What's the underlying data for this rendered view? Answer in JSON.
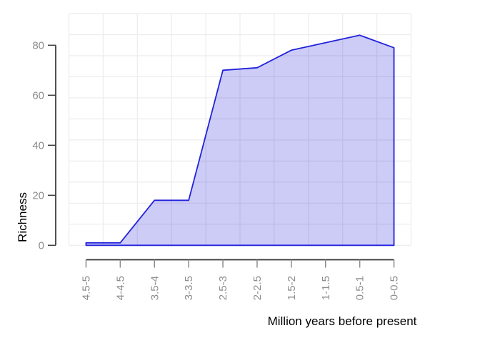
{
  "chart_data": {
    "type": "area",
    "title": "",
    "categories": [
      "4.5-5",
      "4-4.5",
      "3.5-4",
      "3-3.5",
      "2.5-3",
      "2-2.5",
      "1.5-2",
      "1-1.5",
      "0.5-1",
      "0-0.5"
    ],
    "values": [
      1,
      1,
      18,
      18,
      70,
      71,
      78,
      81,
      84,
      79
    ],
    "xlabel": "Million years before present",
    "ylabel": "Richness",
    "yticks": [
      0,
      20,
      40,
      60,
      80
    ],
    "ylim": [
      0,
      92
    ],
    "grid": true,
    "legend": false,
    "layout_hints": {
      "x_tick_labels_rotated_degrees": -90,
      "grid_rows": 11,
      "grid_cols": 10
    },
    "colors": {
      "line": "#2222DB",
      "fill": "#0000D7",
      "fill_opacity": 0.2,
      "grid": "#ECECEC",
      "axis_line": "#333333",
      "y_tick": "#404040",
      "x_tick": "#8C8C8C",
      "tick_label": "#8C8C8C",
      "axis_title": "#000000",
      "background": "#FFFFFF"
    }
  }
}
